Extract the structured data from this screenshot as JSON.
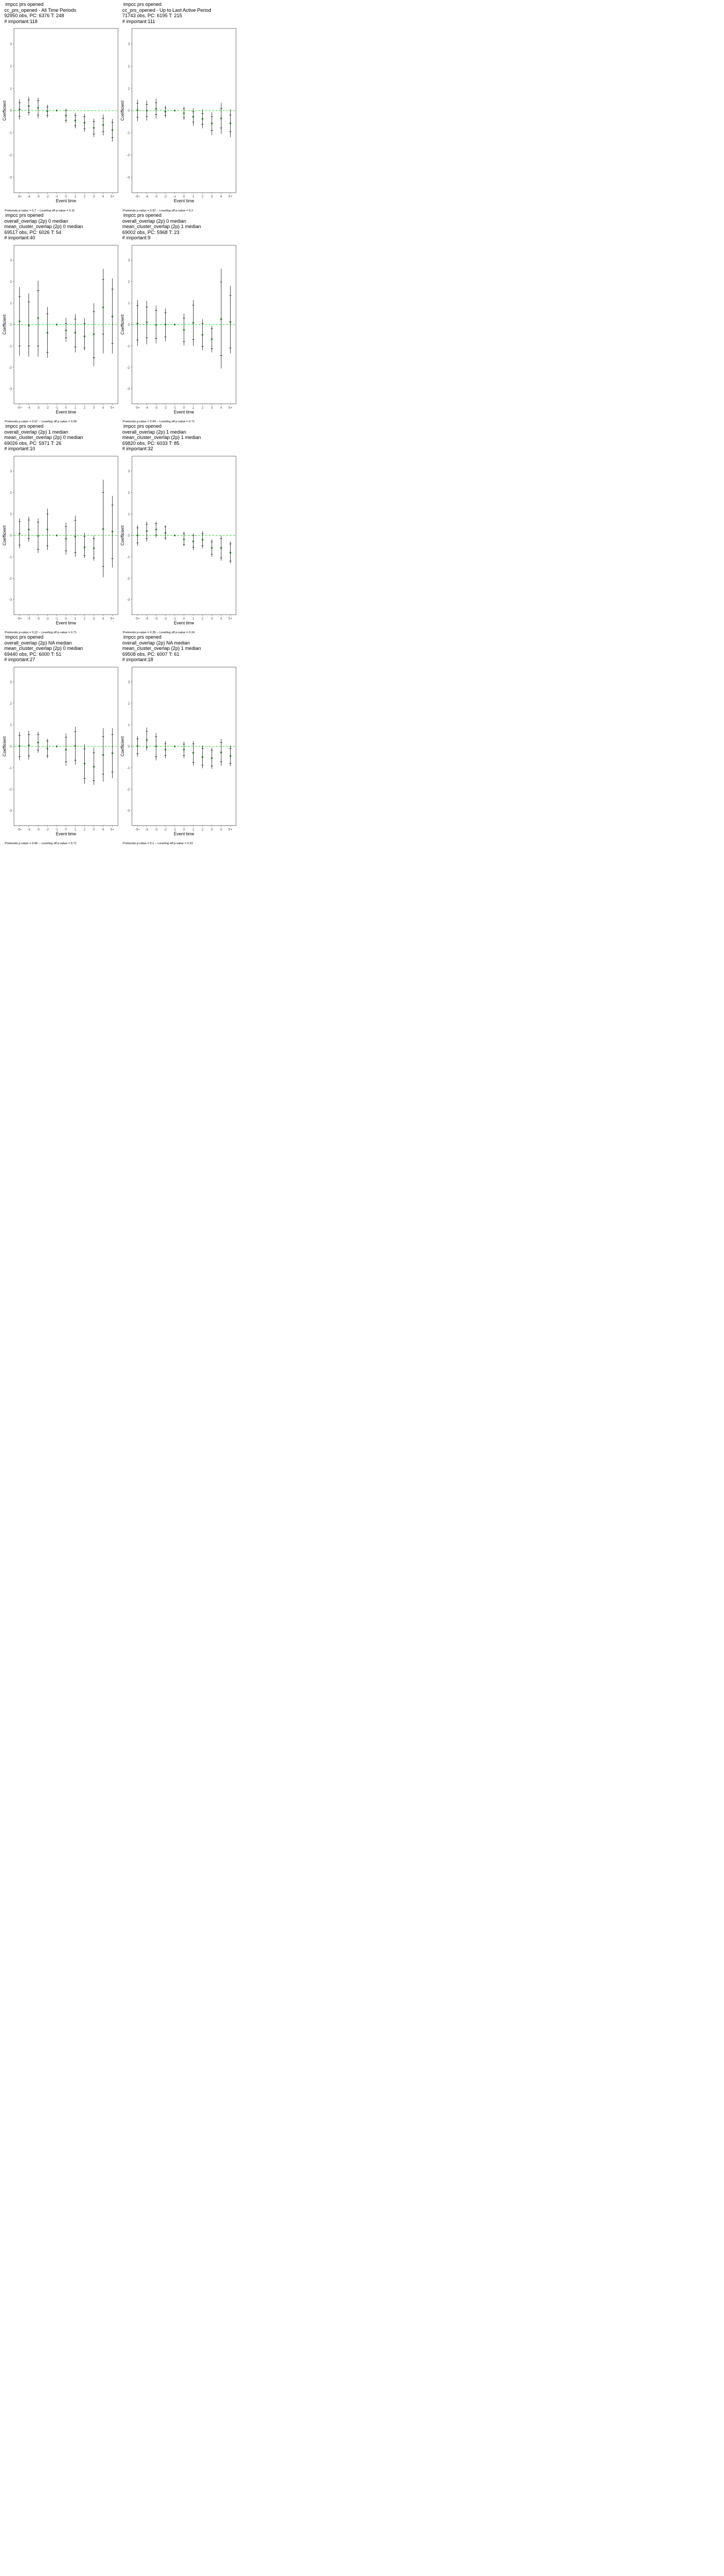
{
  "chart_data": [
    {
      "type": "scatter",
      "title_lines": [
        "impcc prs opened",
        "cc_prs_opened - All Time Periods",
        "92950 obs, PC: 6376 T: 248",
        "# important:118"
      ],
      "xlabel": "Event time",
      "ylabel": "Coefficient",
      "caption": "Pretrends p-value = 0.7 -- Leveling off p-value = 0.11",
      "categories": [
        "-5+",
        "-4",
        "-3",
        "-2",
        "-1",
        "0",
        "1",
        "2",
        "3",
        "4",
        "5+"
      ],
      "ylim": [
        -3.7,
        3.7
      ],
      "yticks": [
        -3,
        -2,
        -1,
        0,
        1,
        2,
        3
      ],
      "values": [
        0.05,
        0.2,
        0.12,
        -0.03,
        0,
        -0.22,
        -0.45,
        -0.55,
        -0.78,
        -0.65,
        -0.88
      ],
      "lower": [
        -0.4,
        -0.22,
        -0.35,
        -0.32,
        0,
        -0.55,
        -0.8,
        -0.95,
        -1.2,
        -1.12,
        -1.4
      ],
      "upper": [
        0.5,
        0.62,
        0.58,
        0.26,
        0,
        0.1,
        -0.1,
        -0.15,
        -0.36,
        -0.18,
        -0.38
      ],
      "inner_lower": [
        -0.25,
        -0.08,
        -0.2,
        -0.22,
        0,
        -0.44,
        -0.68,
        -0.82,
        -1.06,
        -0.95,
        -1.22
      ],
      "inner_upper": [
        0.35,
        0.48,
        0.44,
        0.16,
        0,
        0.0,
        -0.22,
        -0.28,
        -0.5,
        -0.35,
        -0.54
      ],
      "reference_line": 0
    },
    {
      "type": "scatter",
      "title_lines": [
        "impcc prs opened",
        "cc_prs_opened - Up to Last Active Period",
        "71743 obs, PC: 6195 T: 215",
        "# important:111"
      ],
      "xlabel": "Event time",
      "ylabel": "Coefficient",
      "caption": "Pretrends p-value = 0.92 -- Leveling off p-value = 0.2",
      "categories": [
        "-5+",
        "-4",
        "-3",
        "-2",
        "-1",
        "0",
        "1",
        "2",
        "3",
        "4",
        "5+"
      ],
      "ylim": [
        -3.7,
        3.7
      ],
      "yticks": [
        -3,
        -2,
        -1,
        0,
        1,
        2,
        3
      ],
      "values": [
        0.02,
        0.0,
        0.08,
        -0.05,
        0,
        -0.12,
        -0.28,
        -0.38,
        -0.58,
        -0.35,
        -0.58
      ],
      "lower": [
        -0.48,
        -0.45,
        -0.35,
        -0.32,
        0,
        -0.42,
        -0.68,
        -0.8,
        -1.1,
        -1.05,
        -1.2
      ],
      "upper": [
        0.48,
        0.45,
        0.55,
        0.22,
        0,
        0.18,
        0.1,
        0.05,
        -0.08,
        0.35,
        0.05
      ],
      "inner_lower": [
        -0.3,
        -0.28,
        -0.18,
        -0.22,
        0,
        -0.32,
        -0.52,
        -0.62,
        -0.9,
        -0.78,
        -0.96
      ],
      "inner_upper": [
        0.32,
        0.28,
        0.35,
        0.12,
        0,
        0.08,
        -0.05,
        -0.14,
        -0.28,
        0.08,
        -0.2
      ],
      "reference_line": 0
    },
    {
      "type": "scatter",
      "title_lines": [
        "impcc prs opened",
        "overall_overlap (2p) 0 median",
        "mean_cluster_overlap (2p) 0 median",
        "69517 obs, PC: 6026 T: 54",
        "# important:40"
      ],
      "xlabel": "Event time",
      "ylabel": "Coefficient",
      "caption": "Pretrends p-value = 0.57 -- Leveling off p-value = 0.56",
      "categories": [
        "-5+",
        "-4",
        "-3",
        "-2",
        "-1",
        "0",
        "1",
        "2",
        "3",
        "4",
        "5+"
      ],
      "ylim": [
        -3.7,
        3.7
      ],
      "yticks": [
        -3,
        -2,
        -1,
        0,
        1,
        2,
        3
      ],
      "values": [
        0.15,
        -0.05,
        0.3,
        -0.38,
        0,
        -0.28,
        -0.38,
        -0.55,
        -0.45,
        0.8,
        0.38
      ],
      "lower": [
        -1.45,
        -1.5,
        -1.5,
        -1.55,
        0,
        -0.8,
        -1.3,
        -1.2,
        -1.95,
        -1.35,
        -1.35
      ],
      "upper": [
        1.75,
        1.45,
        2.05,
        0.82,
        0,
        0.32,
        0.5,
        0.3,
        1.0,
        2.6,
        2.15
      ],
      "inner_lower": [
        -1.0,
        -1.0,
        -1.0,
        -1.3,
        0,
        -0.62,
        -1.05,
        -1.1,
        -1.55,
        -0.45,
        -0.88
      ],
      "inner_upper": [
        1.3,
        1.05,
        1.58,
        0.5,
        0,
        0.05,
        0.25,
        0.05,
        0.6,
        2.1,
        1.65
      ],
      "reference_line": 0
    },
    {
      "type": "scatter",
      "title_lines": [
        "impcc prs opened",
        "overall_overlap (2p) 0 median",
        "mean_cluster_overlap (2p) 1 median",
        "69002 obs, PC: 5968 T: 23",
        "# important:9"
      ],
      "xlabel": "Event time",
      "ylabel": "Coefficient",
      "caption": "Pretrends p-value = 0.94 -- Leveling off p-value = 0.71",
      "categories": [
        "-5+",
        "-4",
        "-3",
        "-2",
        "-1",
        "0",
        "1",
        "2",
        "3",
        "4",
        "5+"
      ],
      "ylim": [
        -3.7,
        3.7
      ],
      "yticks": [
        -3,
        -2,
        -1,
        0,
        1,
        2,
        3
      ],
      "values": [
        0.05,
        0.1,
        -0.02,
        0.0,
        0,
        -0.25,
        0.08,
        -0.48,
        -0.68,
        0.25,
        0.12
      ],
      "lower": [
        -1.0,
        -0.92,
        -0.88,
        -0.78,
        0,
        -0.98,
        -1.0,
        -1.2,
        -1.3,
        -2.05,
        -1.35
      ],
      "upper": [
        1.15,
        1.1,
        0.88,
        0.75,
        0,
        0.52,
        1.15,
        0.25,
        -0.05,
        2.6,
        1.8
      ],
      "inner_lower": [
        -0.72,
        -0.62,
        -0.65,
        -0.58,
        0,
        -0.8,
        -0.7,
        -1.02,
        -1.12,
        -1.45,
        -1.1
      ],
      "inner_upper": [
        0.88,
        0.82,
        0.65,
        0.55,
        0,
        0.3,
        0.9,
        0.05,
        -0.2,
        1.98,
        1.35
      ],
      "reference_line": 0
    },
    {
      "type": "scatter",
      "title_lines": [
        "impcc prs opened",
        "overall_overlap (2p) 1 median",
        "mean_cluster_overlap (2p) 0 median",
        "69026 obs, PC: 5971 T: 26",
        "# important:10"
      ],
      "xlabel": "Event time",
      "ylabel": "Coefficient",
      "caption": "Pretrends p-value = 0.12 -- Leveling off p-value = 0.71",
      "categories": [
        "-5+",
        "-4",
        "-3",
        "-2",
        "-1",
        "0",
        "1",
        "2",
        "3",
        "4",
        "5+"
      ],
      "ylim": [
        -3.7,
        3.7
      ],
      "yticks": [
        -3,
        -2,
        -1,
        0,
        1,
        2,
        3
      ],
      "values": [
        0.08,
        0.28,
        -0.02,
        0.28,
        0,
        -0.15,
        -0.05,
        -0.55,
        -0.6,
        0.3,
        0.18
      ],
      "lower": [
        -0.6,
        -0.3,
        -0.82,
        -0.68,
        0,
        -0.9,
        -1.0,
        -1.05,
        -1.18,
        -1.95,
        -1.5
      ],
      "upper": [
        0.8,
        0.88,
        0.8,
        1.25,
        0,
        0.6,
        0.92,
        0.12,
        0.0,
        2.6,
        1.85
      ],
      "inner_lower": [
        -0.45,
        -0.15,
        -0.65,
        -0.48,
        0,
        -0.72,
        -0.8,
        -0.95,
        -1.05,
        -1.45,
        -1.08
      ],
      "inner_upper": [
        0.65,
        0.72,
        0.62,
        1.0,
        0,
        0.42,
        0.7,
        -0.05,
        -0.15,
        2.0,
        1.42
      ],
      "reference_line": 0
    },
    {
      "type": "scatter",
      "title_lines": [
        "impcc prs opened",
        "overall_overlap (2p) 1 median",
        "mean_cluster_overlap (2p) 1 median",
        "69820 obs, PC: 6033 T: 85",
        "# important:32"
      ],
      "xlabel": "Event time",
      "ylabel": "Coefficient",
      "caption": "Pretrends p-value = 0.35 -- Leveling off p-value = 0.24",
      "categories": [
        "-5+",
        "-4",
        "-3",
        "-2",
        "-1",
        "0",
        "1",
        "2",
        "3",
        "4",
        "5+"
      ],
      "ylim": [
        -3.7,
        3.7
      ],
      "yticks": [
        -3,
        -2,
        -1,
        0,
        1,
        2,
        3
      ],
      "values": [
        0.0,
        0.2,
        0.28,
        0.12,
        0,
        -0.18,
        -0.28,
        -0.2,
        -0.58,
        -0.58,
        -0.8
      ],
      "lower": [
        -0.48,
        -0.28,
        -0.1,
        -0.2,
        0,
        -0.5,
        -0.68,
        -0.6,
        -1.0,
        -1.18,
        -1.3
      ],
      "upper": [
        0.48,
        0.65,
        0.65,
        0.48,
        0,
        0.18,
        0.1,
        0.2,
        -0.18,
        0.0,
        -0.28
      ],
      "inner_lower": [
        -0.35,
        -0.15,
        0.02,
        -0.12,
        0,
        -0.42,
        -0.55,
        -0.48,
        -0.88,
        -1.05,
        -1.2
      ],
      "inner_upper": [
        0.35,
        0.52,
        0.55,
        0.4,
        0,
        0.08,
        0.0,
        0.08,
        -0.3,
        -0.15,
        -0.4
      ],
      "reference_line": 0
    },
    {
      "type": "scatter",
      "title_lines": [
        "impcc prs opened",
        "overall_overlap (2p) NA median",
        "mean_cluster_overlap (2p) 0 median",
        "69440 obs, PC: 6000 T: 51",
        "# important:27"
      ],
      "xlabel": "Event time",
      "ylabel": "Coefficient",
      "caption": "Pretrends p-value = 0.66 -- Leveling off p-value = 0.71",
      "categories": [
        "-5+",
        "-4",
        "-3",
        "-2",
        "-1",
        "0",
        "1",
        "2",
        "3",
        "4",
        "5+"
      ],
      "ylim": [
        -3.7,
        3.7
      ],
      "yticks": [
        -3,
        -2,
        -1,
        0,
        1,
        2,
        3
      ],
      "values": [
        0.02,
        0.05,
        0.18,
        -0.1,
        0,
        -0.15,
        0.02,
        -0.8,
        -0.95,
        -0.4,
        -0.32
      ],
      "lower": [
        -0.65,
        -0.62,
        -0.3,
        -0.55,
        0,
        -0.9,
        -0.85,
        -1.75,
        -1.8,
        -1.65,
        -1.48
      ],
      "upper": [
        0.68,
        0.72,
        0.68,
        0.35,
        0,
        0.6,
        0.92,
        0.1,
        -0.05,
        0.85,
        0.85
      ],
      "inner_lower": [
        -0.48,
        -0.45,
        -0.18,
        -0.45,
        0,
        -0.72,
        -0.65,
        -1.5,
        -1.6,
        -1.3,
        -1.2
      ],
      "inner_upper": [
        0.5,
        0.55,
        0.55,
        0.25,
        0,
        0.42,
        0.68,
        -0.12,
        -0.3,
        0.45,
        0.55
      ],
      "reference_line": 0
    },
    {
      "type": "scatter",
      "title_lines": [
        "impcc prs opened",
        "overall_overlap (2p) NA median",
        "mean_cluster_overlap (2p) 1 median",
        "69508 obs, PC: 6007 T: 61",
        "# important:18"
      ],
      "xlabel": "Event time",
      "ylabel": "Coefficient",
      "caption": "Pretrends p-value = 0.1 -- Leveling off p-value = 0.22",
      "categories": [
        "-5+",
        "-4",
        "-3",
        "-2",
        "-1",
        "0",
        "1",
        "2",
        "3",
        "4",
        "5+"
      ],
      "ylim": [
        -3.7,
        3.7
      ],
      "yticks": [
        -3,
        -2,
        -1,
        0,
        1,
        2,
        3
      ],
      "values": [
        0.02,
        0.3,
        0.0,
        -0.15,
        0,
        -0.15,
        -0.3,
        -0.5,
        -0.55,
        -0.28,
        -0.45
      ],
      "lower": [
        -0.48,
        -0.2,
        -0.65,
        -0.55,
        0,
        -0.55,
        -0.9,
        -1.02,
        -1.05,
        -0.9,
        -0.92
      ],
      "upper": [
        0.48,
        0.88,
        0.62,
        0.25,
        0,
        0.22,
        0.25,
        0.05,
        -0.05,
        0.35,
        0.05
      ],
      "inner_lower": [
        -0.35,
        -0.05,
        -0.48,
        -0.42,
        0,
        -0.42,
        -0.75,
        -0.88,
        -0.92,
        -0.72,
        -0.8
      ],
      "inner_upper": [
        0.35,
        0.7,
        0.45,
        0.12,
        0,
        0.1,
        0.12,
        -0.1,
        -0.18,
        0.18,
        -0.1
      ],
      "reference_line": 0
    }
  ],
  "colors": {
    "point": "#1f7a1f",
    "reference_line": "#33dd33",
    "error_bar": "#000000",
    "frame": "#222222"
  }
}
